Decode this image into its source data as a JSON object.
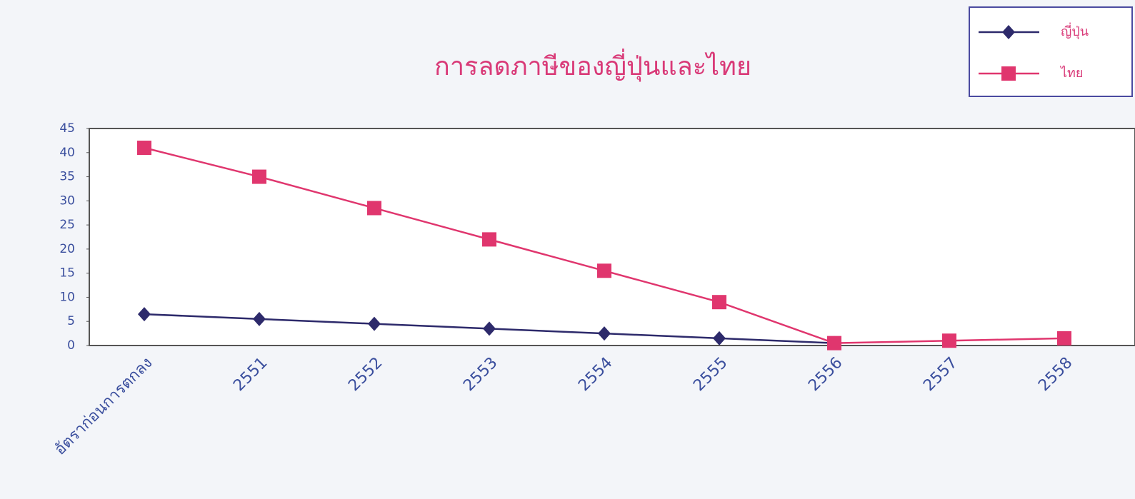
{
  "chart_data": {
    "type": "line",
    "title": "การลดภาษีของญี่ปุ่นและไทย",
    "categories": [
      "อัตราก่อนการตกลง",
      "2551",
      "2552",
      "2553",
      "2554",
      "2555",
      "2556",
      "2557",
      "2558"
    ],
    "series": [
      {
        "name": "ญี่ปุ่น",
        "color": "#2d2a6b",
        "marker": "diamond",
        "values": [
          6.5,
          5.5,
          4.5,
          3.5,
          2.5,
          1.5,
          0.5,
          null,
          null
        ]
      },
      {
        "name": "ไทย",
        "color": "#e0366e",
        "marker": "square",
        "values": [
          41,
          35,
          28.5,
          22,
          15.5,
          9,
          0.5,
          1,
          1.5
        ]
      }
    ],
    "ylim": [
      0,
      45
    ],
    "yticks": [
      0,
      5,
      10,
      15,
      20,
      25,
      30,
      35,
      40,
      45
    ],
    "grid": false,
    "legend": "top-right"
  }
}
